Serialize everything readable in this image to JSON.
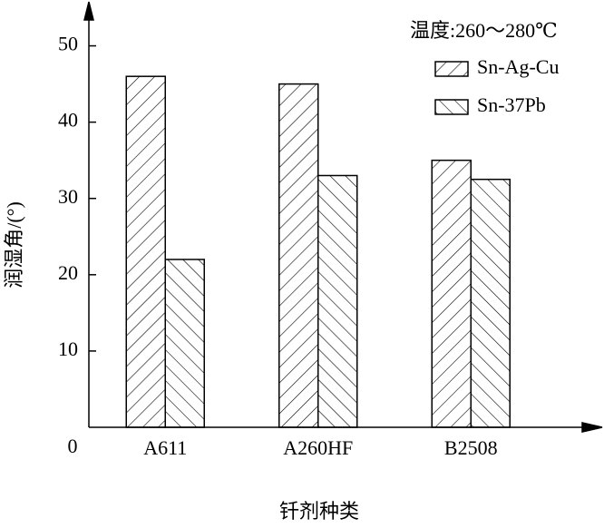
{
  "chart_data": {
    "type": "bar",
    "y_label": "润湿角/(°)",
    "x_label": "钎剂种类",
    "legend_title": "温度:260～280℃",
    "legend": "upper right",
    "categories": [
      "A611",
      "A260HF",
      "B2508"
    ],
    "series": [
      {
        "name": "Sn-Ag-Cu",
        "color": "#000000",
        "values": [
          46,
          45,
          35
        ]
      },
      {
        "name": "Sn-37Pb",
        "color": "#000000",
        "values": [
          22,
          33,
          32.5
        ]
      }
    ],
    "ylim": [
      0,
      55
    ],
    "yticks": [
      0,
      10,
      20,
      30,
      40,
      50
    ]
  }
}
